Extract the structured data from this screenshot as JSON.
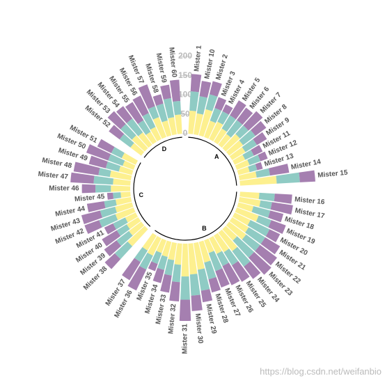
{
  "chart_data": {
    "type": "circular_stacked_bar",
    "categories": [
      "Mister 1",
      "Mister 10",
      "Mister 2",
      "Mister 3",
      "Mister 4",
      "Mister 5",
      "Mister 6",
      "Mister 7",
      "Mister 8",
      "Mister 9",
      "Mister 11",
      "Mister 12",
      "Mister 13",
      "Mister 14",
      "Mister 15",
      "Mister 16",
      "Mister 17",
      "Mister 18",
      "Mister 19",
      "Mister 20",
      "Mister 21",
      "Mister 22",
      "Mister 23",
      "Mister 24",
      "Mister 25",
      "Mister 26",
      "Mister 27",
      "Mister 28",
      "Mister 29",
      "Mister 30",
      "Mister 31",
      "Mister 32",
      "Mister 33",
      "Mister 34",
      "Mister 35",
      "Mister 36",
      "Mister 37",
      "Mister 38",
      "Mister 39",
      "Mister 40",
      "Mister 41",
      "Mister 42",
      "Mister 43",
      "Mister 44",
      "Mister 45",
      "Mister 46",
      "Mister 47",
      "Mister 48",
      "Mister 49",
      "Mister 50",
      "Mister 51",
      "Mister 52",
      "Mister 53",
      "Mister 54",
      "Mister 55",
      "Mister 56",
      "Mister 57",
      "Mister 58",
      "Mister 59",
      "Mister 60"
    ],
    "groups": [
      "A",
      "A",
      "A",
      "A",
      "A",
      "A",
      "A",
      "A",
      "A",
      "A",
      "A",
      "A",
      "A",
      "A",
      "A",
      "B",
      "B",
      "B",
      "B",
      "B",
      "B",
      "B",
      "B",
      "B",
      "B",
      "B",
      "B",
      "B",
      "B",
      "B",
      "B",
      "B",
      "B",
      "B",
      "B",
      "B",
      "B",
      "C",
      "C",
      "C",
      "C",
      "C",
      "C",
      "C",
      "C",
      "C",
      "C",
      "C",
      "C",
      "C",
      "C",
      "D",
      "D",
      "D",
      "D",
      "D",
      "D",
      "D",
      "D",
      "D"
    ],
    "series": [
      {
        "color": "#fdf08f",
        "values": [
          60,
          55,
          70,
          45,
          50,
          40,
          35,
          50,
          45,
          40,
          30,
          35,
          30,
          45,
          95,
          50,
          55,
          40,
          60,
          45,
          50,
          55,
          40,
          60,
          50,
          45,
          35,
          55,
          70,
          80,
          85,
          55,
          45,
          40,
          35,
          50,
          45,
          60,
          40,
          35,
          30,
          50,
          45,
          40,
          25,
          50,
          45,
          55,
          35,
          30,
          40,
          35,
          45,
          40,
          30,
          35,
          55,
          40,
          45,
          50
        ]
      },
      {
        "color": "#8fcbc4",
        "values": [
          50,
          45,
          40,
          35,
          30,
          40,
          45,
          30,
          40,
          35,
          25,
          30,
          20,
          35,
          60,
          40,
          30,
          45,
          35,
          55,
          50,
          45,
          60,
          50,
          40,
          35,
          50,
          45,
          55,
          55,
          60,
          45,
          40,
          35,
          30,
          40,
          35,
          45,
          40,
          30,
          35,
          45,
          40,
          30,
          20,
          40,
          50,
          30,
          35,
          40,
          30,
          35,
          40,
          45,
          35,
          40,
          30,
          45,
          50,
          35
        ]
      },
      {
        "color": "#a57fb0",
        "values": [
          45,
          40,
          35,
          30,
          20,
          45,
          40,
          50,
          35,
          30,
          25,
          20,
          15,
          50,
          40,
          45,
          55,
          35,
          40,
          30,
          45,
          55,
          60,
          40,
          50,
          55,
          45,
          35,
          30,
          40,
          55,
          50,
          45,
          35,
          20,
          60,
          55,
          35,
          40,
          45,
          25,
          40,
          50,
          45,
          15,
          35,
          60,
          65,
          45,
          60,
          40,
          35,
          45,
          40,
          55,
          50,
          60,
          25,
          35,
          55
        ]
      }
    ],
    "ylim": [
      0,
      200
    ],
    "yticks": [
      0,
      50,
      100,
      150,
      200
    ],
    "grid": true,
    "watermark": "https://blog.csdn.net/weifanbio"
  }
}
